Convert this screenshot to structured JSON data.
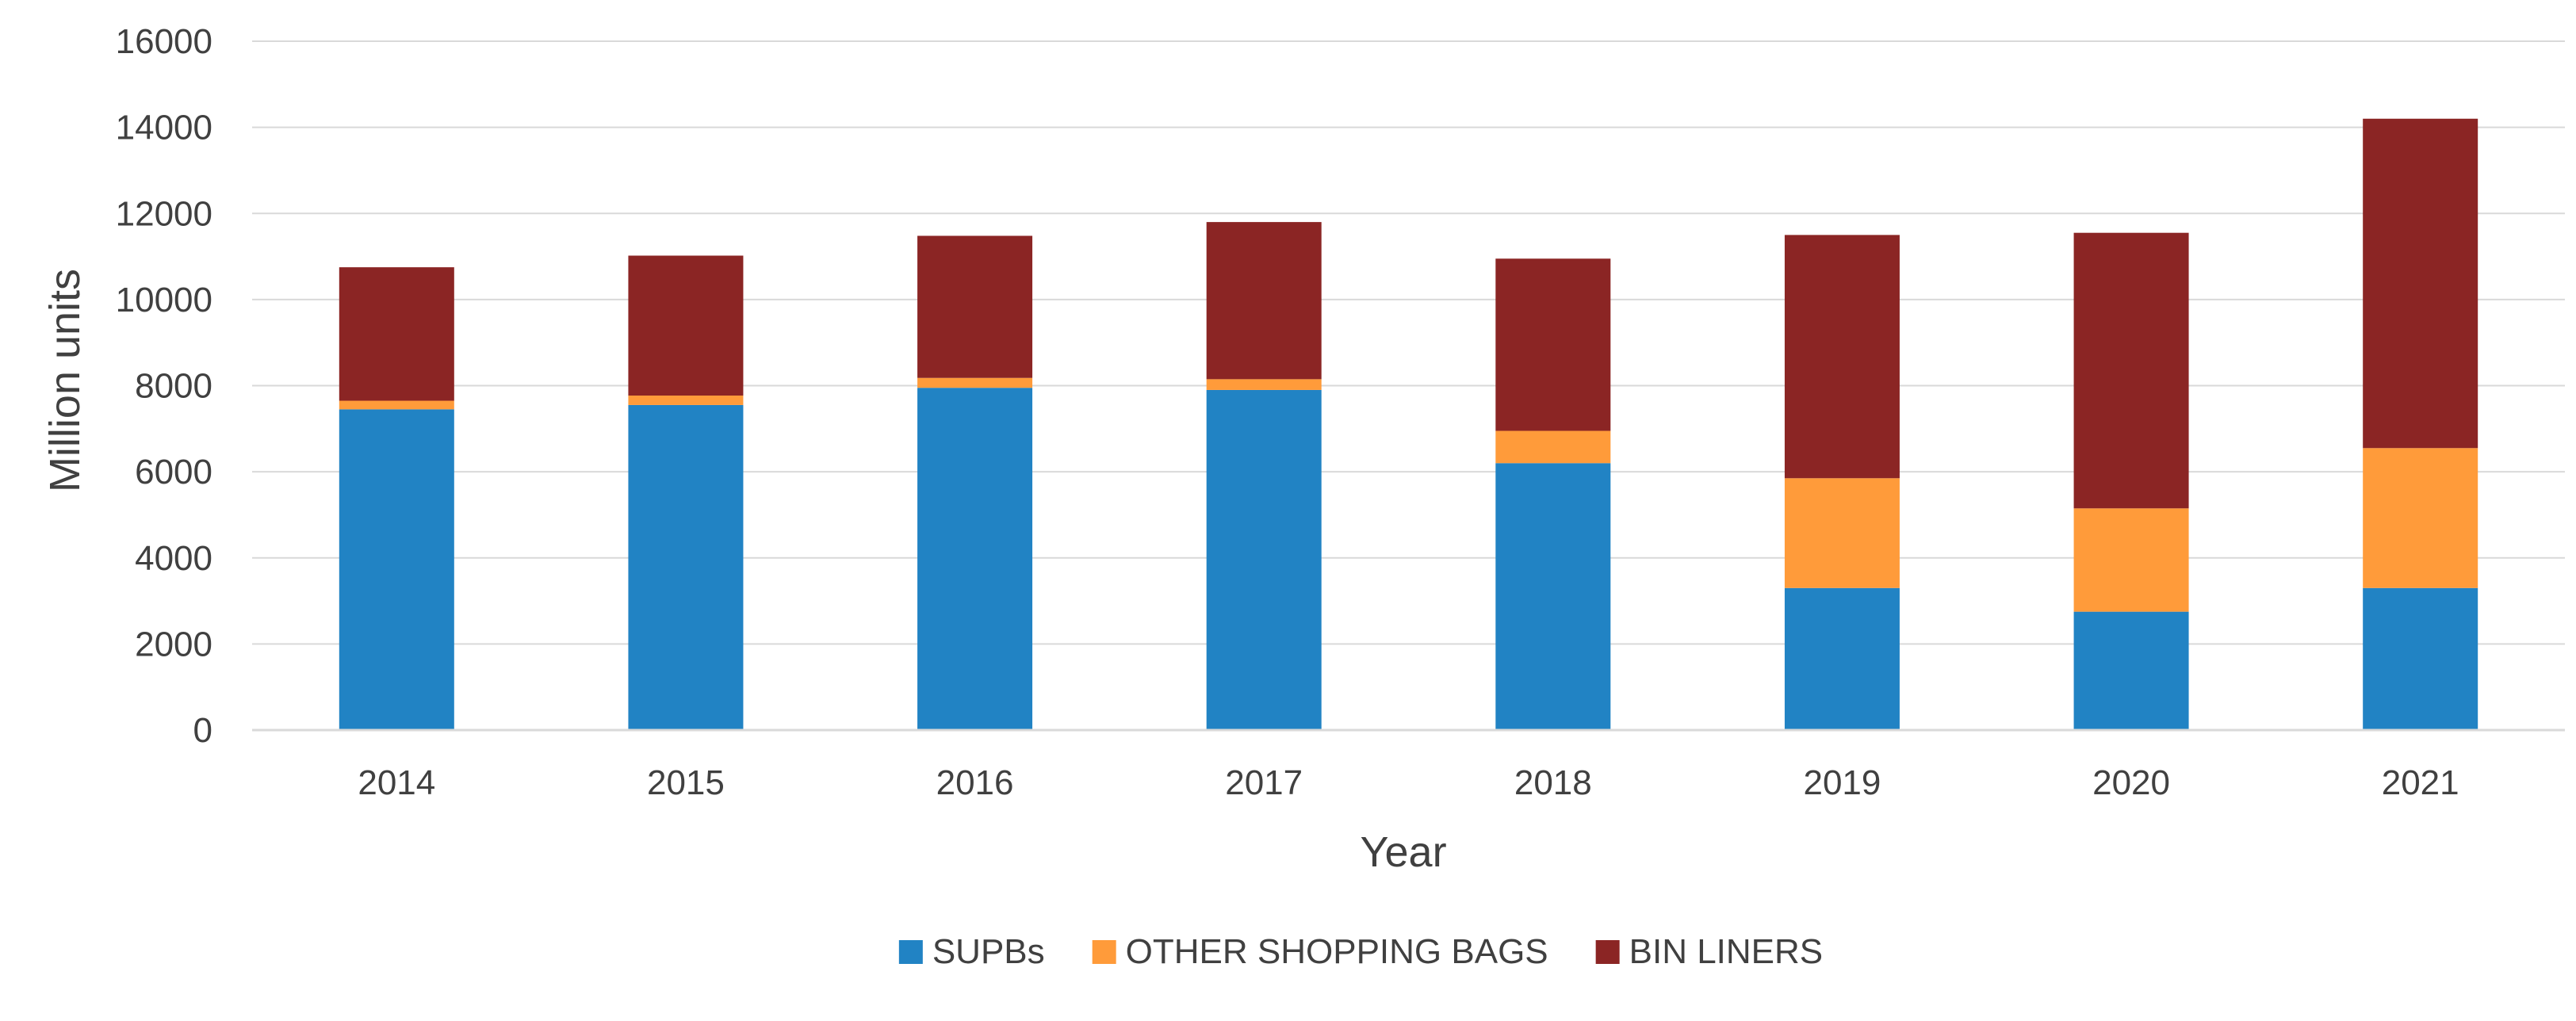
{
  "chart_data": {
    "type": "bar",
    "stacked": true,
    "title": "",
    "xlabel": "Year",
    "ylabel": "Million units",
    "ylim": [
      0,
      16000
    ],
    "yticks": [
      "0",
      "2000",
      "4000",
      "6000",
      "8000",
      "10000",
      "12000",
      "14000",
      "16000"
    ],
    "ytick_values": [
      0,
      2000,
      4000,
      6000,
      8000,
      10000,
      12000,
      14000,
      16000
    ],
    "grid": true,
    "legend_position": "bottom",
    "categories": [
      "2014",
      "2015",
      "2016",
      "2017",
      "2018",
      "2019",
      "2020",
      "2021"
    ],
    "series": [
      {
        "name": "SUPBs",
        "color": "#2183C4",
        "values": [
          7450,
          7550,
          7950,
          7900,
          6200,
          3300,
          2750,
          3300
        ]
      },
      {
        "name": "OTHER SHOPPING BAGS",
        "color": "#FF9B3A",
        "values": [
          200,
          220,
          230,
          250,
          750,
          2550,
          2400,
          3250
        ]
      },
      {
        "name": "BIN LINERS",
        "color": "#8B2524",
        "values": [
          3100,
          3250,
          3300,
          3650,
          4000,
          5650,
          6400,
          7650
        ]
      }
    ]
  }
}
